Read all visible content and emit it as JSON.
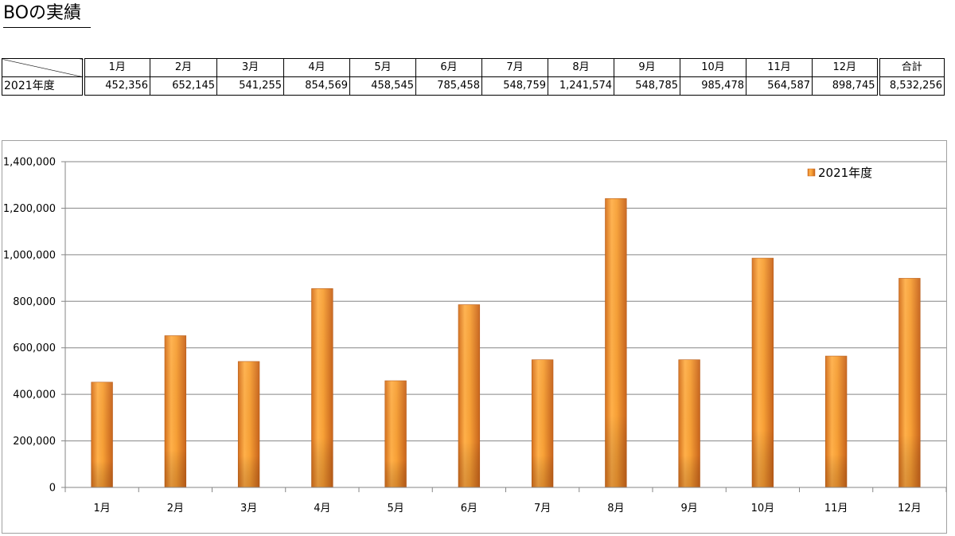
{
  "title": "BOの実績",
  "table": {
    "headers": [
      "1月",
      "2月",
      "3月",
      "4月",
      "5月",
      "6月",
      "7月",
      "8月",
      "9月",
      "10月",
      "11月",
      "12月"
    ],
    "total_header": "合計",
    "row_label": "2021年度",
    "values": [
      "452,356",
      "652,145",
      "541,255",
      "854,569",
      "458,545",
      "785,458",
      "548,759",
      "1,241,574",
      "548,785",
      "985,478",
      "564,587",
      "898,745"
    ],
    "total": "8,532,256"
  },
  "chart_data": {
    "type": "bar",
    "categories": [
      "1月",
      "2月",
      "3月",
      "4月",
      "5月",
      "6月",
      "7月",
      "8月",
      "9月",
      "10月",
      "11月",
      "12月"
    ],
    "series": [
      {
        "name": "2021年度",
        "values": [
          452356,
          652145,
          541255,
          854569,
          458545,
          785458,
          548759,
          1241574,
          548785,
          985478,
          564587,
          898745
        ]
      }
    ],
    "ylim": [
      0,
      1400000
    ],
    "yticks": [
      0,
      200000,
      400000,
      600000,
      800000,
      1000000,
      1200000,
      1400000
    ],
    "ytick_labels": [
      "0",
      "200,000",
      "400,000",
      "600,000",
      "800,000",
      "1,000,000",
      "1,200,000",
      "1,400,000"
    ],
    "grid": true,
    "legend": "top-right",
    "colors": {
      "bar_light": "#ffb04a",
      "bar_mid": "#f59a2c",
      "bar_dark": "#c8641c",
      "grid": "#868686"
    }
  }
}
